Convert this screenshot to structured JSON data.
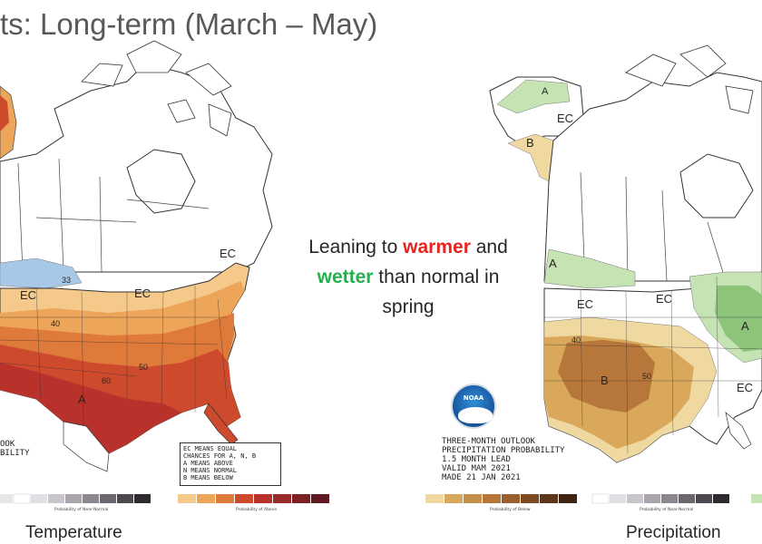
{
  "slide": {
    "title": "ts: Long-term (March – May)"
  },
  "callout": {
    "line1_pre": "Leaning to ",
    "warm_word": "warmer",
    "line1_post": " and",
    "wet_word": "wetter",
    "line2_post": " than normal in",
    "line3": "spring",
    "warm_color": "#e8231e",
    "wet_color": "#22b24c"
  },
  "temperature_map": {
    "caption": "Temperature",
    "labels": {
      "ec_west": "EC",
      "ec_mid": "EC",
      "ec_ne": "EC",
      "above": "A",
      "contour_60": "60",
      "contour_50": "50",
      "contour_40": "40",
      "contour_33": "33"
    },
    "legend_lines": [
      "EC MEANS EQUAL",
      "CHANCES FOR A, N, B",
      "A MEANS ABOVE",
      "N MEANS NORMAL",
      "B MEANS BELOW"
    ],
    "partial_title": [
      "OOK",
      "BILITY"
    ],
    "scale_label_normal": "Probability of Near-Normal",
    "scale_label_above": "Probability of Above",
    "colors": {
      "above_33": "#f5c98a",
      "above_40": "#eda55a",
      "above_50": "#e07a3a",
      "above_60": "#cd4a2d",
      "above_70": "#b8312b",
      "below": "#a8c8e8"
    }
  },
  "precipitation_map": {
    "caption": "Precipitation",
    "labels": {
      "ec_alaska": "EC",
      "below_alaska": "B",
      "above_alaska": "A",
      "above_nw": "A",
      "ec_west": "EC",
      "ec_mid": "EC",
      "ec_se": "EC",
      "below_sw": "B",
      "above_ohio": "A",
      "contour_40": "40",
      "contour_50": "50"
    },
    "info_lines": [
      "THREE-MONTH OUTLOOK",
      "PRECIPITATION PROBABILITY",
      "1.5 MONTH LEAD",
      "VALID MAM 2021",
      "MADE 21 JAN 2021"
    ],
    "scale_label_below": "Probability of Below",
    "scale_label_normal": "Probability of Near-Normal",
    "colors": {
      "below_33": "#f0d9a0",
      "below_40": "#d9a85a",
      "below_50": "#b8773a",
      "above_33": "#c6e3b4",
      "above_40": "#8cc47a"
    }
  },
  "noaa_logo": {
    "text": "NOAA"
  }
}
